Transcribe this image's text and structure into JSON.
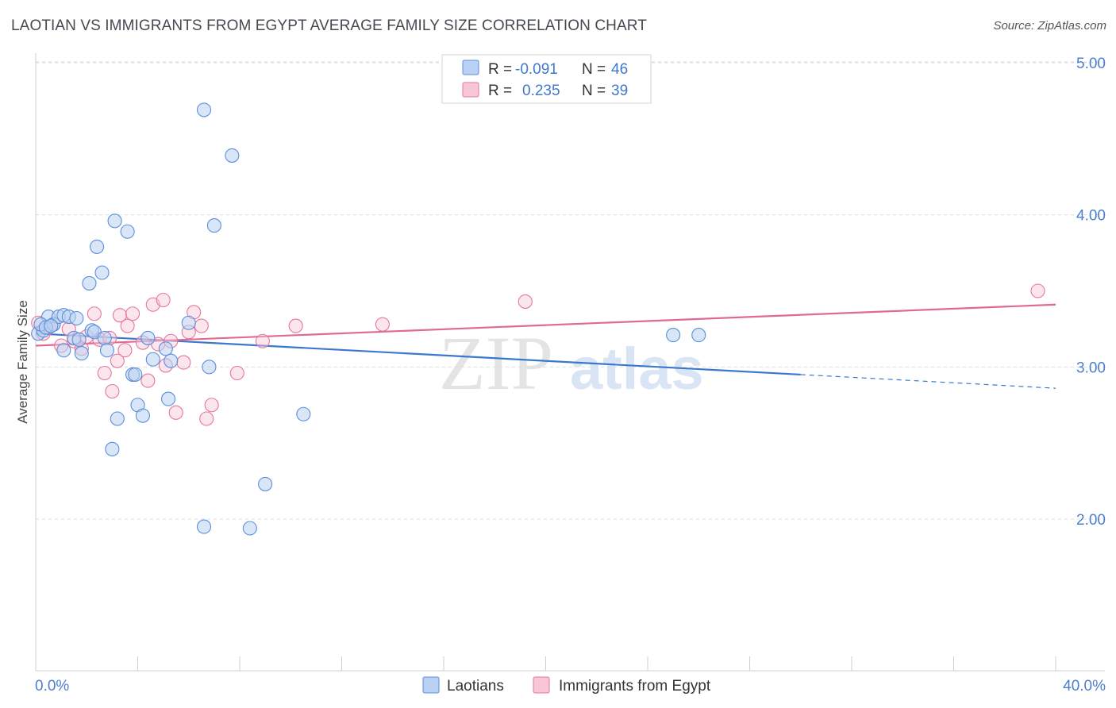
{
  "header": {
    "title": "LAOTIAN VS IMMIGRANTS FROM EGYPT AVERAGE FAMILY SIZE CORRELATION CHART",
    "source": "Source: ZipAtlas.com"
  },
  "watermark": {
    "zip": "ZIP",
    "atlas": "atlas"
  },
  "legend": {
    "r_label": "R =",
    "n_label": "N =",
    "series": [
      {
        "name": "Laotians",
        "r": "-0.091",
        "n": "46",
        "color": "#5b8fdb",
        "fill": "#b9d2f3"
      },
      {
        "name": "Immigrants from Egypt",
        "r": "0.235",
        "n": "39",
        "color": "#e6769c",
        "fill": "#f8c7d7"
      }
    ]
  },
  "chart_data": {
    "type": "scatter",
    "title": "LAOTIAN VS IMMIGRANTS FROM EGYPT AVERAGE FAMILY SIZE CORRELATION CHART",
    "xlabel": "",
    "ylabel": "Average Family Size",
    "xlim": [
      0,
      40
    ],
    "ylim": [
      1.0,
      5.1
    ],
    "x_tick_labels": [
      "0.0%",
      "40.0%"
    ],
    "y_ticks": [
      2.0,
      3.0,
      4.0,
      5.0
    ],
    "y_tick_labels": [
      "2.00",
      "3.00",
      "4.00",
      "5.00"
    ],
    "series": [
      {
        "name": "Laotians",
        "color": "#5b8fdb",
        "points": [
          [
            0.1,
            3.22
          ],
          [
            0.3,
            3.24
          ],
          [
            0.5,
            3.33
          ],
          [
            0.7,
            3.28
          ],
          [
            0.9,
            3.33
          ],
          [
            1.1,
            3.34
          ],
          [
            1.1,
            3.11
          ],
          [
            1.3,
            3.33
          ],
          [
            1.5,
            3.19
          ],
          [
            1.6,
            3.32
          ],
          [
            1.8,
            3.09
          ],
          [
            2.1,
            3.55
          ],
          [
            2.2,
            3.24
          ],
          [
            2.3,
            3.23
          ],
          [
            2.4,
            3.79
          ],
          [
            2.6,
            3.62
          ],
          [
            2.7,
            3.19
          ],
          [
            2.8,
            3.11
          ],
          [
            3.0,
            2.46
          ],
          [
            3.1,
            3.96
          ],
          [
            3.2,
            2.66
          ],
          [
            3.6,
            3.89
          ],
          [
            3.8,
            2.95
          ],
          [
            3.9,
            2.95
          ],
          [
            4.0,
            2.75
          ],
          [
            4.2,
            2.68
          ],
          [
            4.4,
            3.19
          ],
          [
            4.6,
            3.05
          ],
          [
            5.1,
            3.12
          ],
          [
            5.2,
            2.79
          ],
          [
            5.3,
            3.04
          ],
          [
            6.0,
            3.29
          ],
          [
            6.6,
            4.69
          ],
          [
            6.6,
            1.95
          ],
          [
            6.8,
            3.0
          ],
          [
            7.0,
            3.93
          ],
          [
            7.7,
            4.39
          ],
          [
            8.4,
            1.94
          ],
          [
            9.0,
            2.23
          ],
          [
            10.5,
            2.69
          ],
          [
            25.0,
            3.21
          ],
          [
            26.0,
            3.21
          ],
          [
            0.2,
            3.28
          ],
          [
            0.4,
            3.26
          ],
          [
            0.6,
            3.27
          ],
          [
            1.7,
            3.18
          ]
        ]
      },
      {
        "name": "Immigrants from Egypt",
        "color": "#e6769c",
        "points": [
          [
            0.1,
            3.29
          ],
          [
            0.3,
            3.22
          ],
          [
            0.5,
            3.26
          ],
          [
            0.7,
            3.28
          ],
          [
            1.0,
            3.14
          ],
          [
            1.3,
            3.25
          ],
          [
            1.5,
            3.17
          ],
          [
            1.8,
            3.12
          ],
          [
            2.0,
            3.2
          ],
          [
            2.3,
            3.35
          ],
          [
            2.5,
            3.18
          ],
          [
            2.7,
            2.96
          ],
          [
            2.9,
            3.19
          ],
          [
            3.0,
            2.84
          ],
          [
            3.2,
            3.04
          ],
          [
            3.3,
            3.34
          ],
          [
            3.5,
            3.11
          ],
          [
            3.6,
            3.27
          ],
          [
            3.8,
            3.35
          ],
          [
            4.2,
            3.16
          ],
          [
            4.4,
            2.91
          ],
          [
            4.6,
            3.41
          ],
          [
            4.8,
            3.15
          ],
          [
            5.0,
            3.44
          ],
          [
            5.1,
            3.01
          ],
          [
            5.3,
            3.17
          ],
          [
            5.5,
            2.7
          ],
          [
            5.8,
            3.03
          ],
          [
            6.0,
            3.23
          ],
          [
            6.2,
            3.36
          ],
          [
            6.5,
            3.27
          ],
          [
            6.7,
            2.66
          ],
          [
            6.9,
            2.75
          ],
          [
            7.9,
            2.96
          ],
          [
            8.9,
            3.17
          ],
          [
            10.2,
            3.27
          ],
          [
            13.6,
            3.28
          ],
          [
            19.2,
            3.43
          ],
          [
            39.3,
            3.5
          ]
        ]
      }
    ],
    "trendlines": [
      {
        "series": "Laotians",
        "x0": 0,
        "y0": 3.22,
        "x1": 30,
        "y1": 2.95,
        "dashed_to_x": 40,
        "dashed_to_y": 2.86
      },
      {
        "series": "Immigrants from Egypt",
        "x0": 0,
        "y0": 3.14,
        "x1": 40,
        "y1": 3.41
      }
    ]
  }
}
